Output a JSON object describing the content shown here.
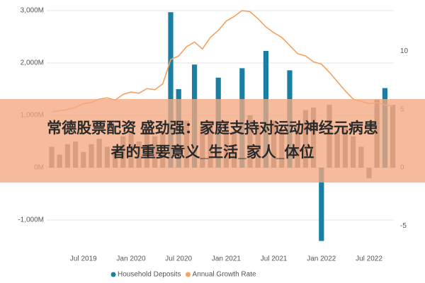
{
  "chart_data": {
    "type": "combo",
    "categories": [
      null,
      null,
      null,
      null,
      "Jul 2019",
      null,
      null,
      null,
      null,
      null,
      "Jan 2020",
      null,
      null,
      null,
      null,
      null,
      "Jul 2020",
      null,
      null,
      null,
      null,
      null,
      "Jan 2021",
      null,
      null,
      null,
      null,
      null,
      "Jul 2021",
      null,
      null,
      null,
      null,
      null,
      "Jan 2022",
      null,
      null,
      null,
      null,
      null,
      "Jul 2022",
      null,
      null,
      null
    ],
    "series": [
      {
        "name": "Household Deposits",
        "type": "bar",
        "color": "#1b7fa3",
        "colors": [
          "#7d7d7d",
          "#7d7d7d",
          "#7d7d7d",
          "#7d7d7d",
          "#7d7d7d",
          "#7d7d7d",
          "#7d7d7d",
          "#7d7d7d",
          "#7d7d7d",
          "#7d7d7d",
          "#7d7d7d",
          "#7d7d7d",
          "#7d7d7d",
          "#7d7d7d",
          "#7d7d7d",
          "#1b7fa3",
          "#1b7fa3",
          "#7d7d7d",
          "#1b7fa3",
          "#7d7d7d",
          "#7d7d7d",
          "#1b7fa3",
          "#7d7d7d",
          "#7d7d7d",
          "#1b7fa3",
          "#7d7d7d",
          "#7d7d7d",
          "#1b7fa3",
          "#7d7d7d",
          "#7d7d7d",
          "#1b7fa3",
          "#7d7d7d",
          "#7d7d7d",
          "#7d7d7d",
          "#1b7fa3",
          "#7d7d7d",
          "#7d7d7d",
          "#7d7d7d",
          "#7d7d7d",
          "#7d7d7d",
          "#7d7d7d",
          "#7d7d7d",
          "#1b7fa3",
          "#7d7d7d"
        ],
        "values": [
          400,
          250,
          450,
          500,
          300,
          450,
          550,
          400,
          350,
          600,
          700,
          500,
          800,
          600,
          700,
          2970,
          1500,
          900,
          1970,
          800,
          900,
          1720,
          900,
          700,
          1900,
          1000,
          800,
          2230,
          900,
          700,
          1860,
          800,
          1100,
          1150,
          -1400,
          1200,
          700,
          800,
          600,
          400,
          -200,
          1300,
          1520,
          1200
        ]
      },
      {
        "name": "Annual Growth Rate",
        "type": "line",
        "axis": "y2",
        "color": "#f4a262",
        "values": [
          4.8,
          4.9,
          5.0,
          5.2,
          5.5,
          5.6,
          5.9,
          6.0,
          5.8,
          6.3,
          6.5,
          6.4,
          6.8,
          6.7,
          7.2,
          9.3,
          9.6,
          10.4,
          10.8,
          10.2,
          11.2,
          11.8,
          12.6,
          13.0,
          13.5,
          13.4,
          12.8,
          12.1,
          11.6,
          11.2,
          10.5,
          9.8,
          9.6,
          9.1,
          8.9,
          8.2,
          7.4,
          6.6,
          5.9,
          5.7,
          5.5,
          5.6,
          5.4,
          5.3
        ]
      }
    ],
    "ylim": [
      -1500,
      3000
    ],
    "yticks": [
      {
        "value": -1000,
        "label": "-1,000M"
      },
      {
        "value": 0,
        "label": "0M"
      },
      {
        "value": 1000,
        "label": "1,000M"
      },
      {
        "value": 2000,
        "label": "2,000M"
      },
      {
        "value": 3000,
        "label": "3,000M"
      }
    ],
    "y2lim": [
      -6.75,
      13.5
    ],
    "y2ticks": [
      -5,
      0,
      5,
      10
    ],
    "grid": true
  },
  "banner": {
    "lines": [
      "常德股票配资 盛劲强：家庭支持对运动神经元病患",
      "者的重要意义_生活_家人_体位"
    ]
  }
}
